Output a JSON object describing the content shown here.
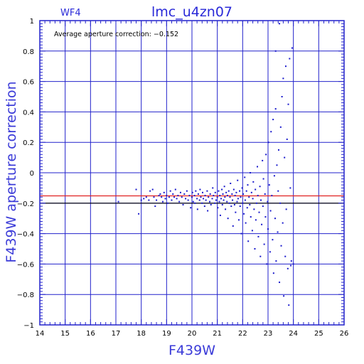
{
  "chart_data": {
    "type": "scatter",
    "title": "lmc_u4zn07",
    "panel": "WF4",
    "xlabel": "F439W",
    "ylabel": "F439W aperture correction",
    "annotation": "Average aperture correction: −0.152",
    "xlim": [
      14,
      26
    ],
    "ylim": [
      -1,
      1
    ],
    "x_ticks": [
      14,
      15,
      16,
      17,
      18,
      19,
      20,
      21,
      22,
      23,
      24,
      25,
      26
    ],
    "y_ticks": [
      -1,
      -0.8,
      -0.6,
      -0.4,
      -0.2,
      0,
      0.2,
      0.4,
      0.6,
      0.8,
      1
    ],
    "y_tick_labels": [
      "−1",
      "−0.8",
      "−0.6",
      "−0.4",
      "−0.2",
      "0",
      "0.2",
      "0.4",
      "0.6",
      "0.8",
      "1"
    ],
    "grid": true,
    "reference_lines": [
      {
        "y": -0.152,
        "color": "#e02020"
      },
      {
        "y": -0.2,
        "color": "#000000"
      }
    ],
    "points": [
      [
        17.1,
        -0.19
      ],
      [
        17.8,
        -0.11
      ],
      [
        17.9,
        -0.27
      ],
      [
        18.0,
        -0.18
      ],
      [
        18.1,
        -0.17
      ],
      [
        18.2,
        -0.16
      ],
      [
        18.3,
        -0.18
      ],
      [
        18.35,
        -0.12
      ],
      [
        18.45,
        -0.11
      ],
      [
        18.5,
        -0.16
      ],
      [
        18.55,
        -0.22
      ],
      [
        18.6,
        -0.18
      ],
      [
        18.7,
        -0.15
      ],
      [
        18.75,
        -0.14
      ],
      [
        18.8,
        -0.16
      ],
      [
        18.85,
        -0.19
      ],
      [
        18.9,
        -0.13
      ],
      [
        18.95,
        -0.17
      ],
      [
        19.0,
        -0.15
      ],
      [
        19.05,
        -0.2
      ],
      [
        19.1,
        -0.16
      ],
      [
        19.15,
        -0.12
      ],
      [
        19.2,
        -0.18
      ],
      [
        19.25,
        -0.14
      ],
      [
        19.3,
        -0.16
      ],
      [
        19.35,
        -0.11
      ],
      [
        19.4,
        -0.17
      ],
      [
        19.45,
        -0.15
      ],
      [
        19.5,
        -0.19
      ],
      [
        19.55,
        -0.13
      ],
      [
        19.6,
        -0.16
      ],
      [
        19.65,
        -0.21
      ],
      [
        19.7,
        -0.14
      ],
      [
        19.75,
        -0.17
      ],
      [
        19.8,
        -0.12
      ],
      [
        19.85,
        -0.18
      ],
      [
        19.9,
        -0.15
      ],
      [
        19.95,
        -0.23
      ],
      [
        20.0,
        -0.16
      ],
      [
        20.02,
        -0.13
      ],
      [
        20.05,
        -0.19
      ],
      [
        20.1,
        -0.15
      ],
      [
        20.12,
        -0.2
      ],
      [
        20.15,
        -0.12
      ],
      [
        20.2,
        -0.17
      ],
      [
        20.22,
        -0.24
      ],
      [
        20.25,
        -0.14
      ],
      [
        20.3,
        -0.18
      ],
      [
        20.32,
        -0.11
      ],
      [
        20.35,
        -0.16
      ],
      [
        20.4,
        -0.2
      ],
      [
        20.42,
        -0.13
      ],
      [
        20.45,
        -0.17
      ],
      [
        20.5,
        -0.22
      ],
      [
        20.52,
        -0.15
      ],
      [
        20.55,
        -0.18
      ],
      [
        20.6,
        -0.12
      ],
      [
        20.62,
        -0.25
      ],
      [
        20.65,
        -0.16
      ],
      [
        20.7,
        -0.19
      ],
      [
        20.72,
        -0.14
      ],
      [
        20.75,
        -0.21
      ],
      [
        20.8,
        -0.17
      ],
      [
        20.82,
        -0.1
      ],
      [
        20.85,
        -0.15
      ],
      [
        20.9,
        -0.2
      ],
      [
        20.92,
        -0.13
      ],
      [
        20.95,
        -0.18
      ],
      [
        21.0,
        -0.16
      ],
      [
        21.02,
        -0.23
      ],
      [
        21.05,
        -0.12
      ],
      [
        21.08,
        -0.19
      ],
      [
        21.1,
        -0.15
      ],
      [
        21.12,
        -0.28
      ],
      [
        21.15,
        -0.17
      ],
      [
        21.18,
        -0.11
      ],
      [
        21.2,
        -0.21
      ],
      [
        21.22,
        -0.14
      ],
      [
        21.25,
        -0.18
      ],
      [
        21.28,
        -0.09
      ],
      [
        21.3,
        -0.16
      ],
      [
        21.32,
        -0.24
      ],
      [
        21.35,
        -0.13
      ],
      [
        21.38,
        -0.19
      ],
      [
        21.4,
        -0.15
      ],
      [
        21.42,
        -0.3
      ],
      [
        21.45,
        -0.12
      ],
      [
        21.48,
        -0.2
      ],
      [
        21.5,
        -0.16
      ],
      [
        21.52,
        -0.07
      ],
      [
        21.55,
        -0.22
      ],
      [
        21.58,
        -0.14
      ],
      [
        21.6,
        -0.18
      ],
      [
        21.62,
        -0.35
      ],
      [
        21.65,
        -0.11
      ],
      [
        21.68,
        -0.21
      ],
      [
        21.7,
        -0.15
      ],
      [
        21.72,
        -0.26
      ],
      [
        21.75,
        -0.13
      ],
      [
        21.78,
        -0.19
      ],
      [
        21.8,
        -0.05
      ],
      [
        21.82,
        -0.17
      ],
      [
        21.85,
        -0.31
      ],
      [
        21.88,
        -0.12
      ],
      [
        21.9,
        -0.22
      ],
      [
        21.92,
        -0.16
      ],
      [
        21.95,
        -0.4
      ],
      [
        21.98,
        -0.1
      ],
      [
        22.0,
        -0.2
      ],
      [
        22.02,
        -0.14
      ],
      [
        22.05,
        -0.27
      ],
      [
        22.08,
        -0.03
      ],
      [
        22.1,
        -0.18
      ],
      [
        22.12,
        -0.33
      ],
      [
        22.15,
        -0.12
      ],
      [
        22.18,
        -0.23
      ],
      [
        22.2,
        -0.08
      ],
      [
        22.22,
        -0.45
      ],
      [
        22.25,
        -0.16
      ],
      [
        22.28,
        -0.21
      ],
      [
        22.3,
        0.0
      ],
      [
        22.32,
        -0.29
      ],
      [
        22.35,
        -0.13
      ],
      [
        22.38,
        -0.38
      ],
      [
        22.4,
        -0.17
      ],
      [
        22.42,
        -0.06
      ],
      [
        22.45,
        -0.24
      ],
      [
        22.48,
        -0.5
      ],
      [
        22.5,
        -0.11
      ],
      [
        22.52,
        -0.31
      ],
      [
        22.55,
        -0.2
      ],
      [
        22.58,
        0.04
      ],
      [
        22.6,
        -0.15
      ],
      [
        22.62,
        -0.42
      ],
      [
        22.65,
        -0.26
      ],
      [
        22.68,
        -0.09
      ],
      [
        22.7,
        -0.55
      ],
      [
        22.72,
        -0.18
      ],
      [
        22.75,
        -0.34
      ],
      [
        22.78,
        0.08
      ],
      [
        22.8,
        -0.22
      ],
      [
        22.82,
        -0.04
      ],
      [
        22.85,
        -0.47
      ],
      [
        22.88,
        -0.14
      ],
      [
        22.9,
        -0.29
      ],
      [
        22.92,
        0.12
      ],
      [
        22.95,
        -0.6
      ],
      [
        22.98,
        -0.19
      ],
      [
        23.0,
        -0.37
      ],
      [
        23.02,
        0.2
      ],
      [
        23.05,
        -0.08
      ],
      [
        23.08,
        -0.52
      ],
      [
        23.1,
        -0.25
      ],
      [
        23.12,
        0.27
      ],
      [
        23.15,
        -0.15
      ],
      [
        23.18,
        -0.44
      ],
      [
        23.2,
        0.35
      ],
      [
        23.22,
        -0.66
      ],
      [
        23.25,
        -0.02
      ],
      [
        23.28,
        -0.3
      ],
      [
        23.3,
        0.42
      ],
      [
        23.32,
        -0.58
      ],
      [
        23.35,
        0.05
      ],
      [
        23.38,
        -0.39
      ],
      [
        23.4,
        -0.12
      ],
      [
        23.42,
        0.15
      ],
      [
        23.45,
        -0.72
      ],
      [
        23.48,
        -0.2
      ],
      [
        23.5,
        0.3
      ],
      [
        23.52,
        -0.48
      ],
      [
        23.55,
        0.5
      ],
      [
        23.58,
        -0.33
      ],
      [
        23.6,
        0.62
      ],
      [
        23.62,
        -0.81
      ],
      [
        23.65,
        0.1
      ],
      [
        23.68,
        -0.55
      ],
      [
        23.7,
        0.7
      ],
      [
        23.72,
        -0.24
      ],
      [
        23.75,
        0.22
      ],
      [
        23.78,
        -0.63
      ],
      [
        23.8,
        0.45
      ],
      [
        23.82,
        -0.87
      ],
      [
        23.85,
        0.75
      ],
      [
        23.88,
        -0.1
      ],
      [
        23.9,
        -0.61
      ],
      [
        23.95,
        0.82
      ],
      [
        24.0,
        -0.6
      ],
      [
        23.45,
        0.98
      ],
      [
        23.3,
        0.8
      ],
      [
        23.92,
        -0.58
      ]
    ]
  },
  "colors": {
    "frame": "#2222cc",
    "grid": "#2222cc",
    "points": "#1a1acc",
    "ticks_text": "#000000"
  }
}
